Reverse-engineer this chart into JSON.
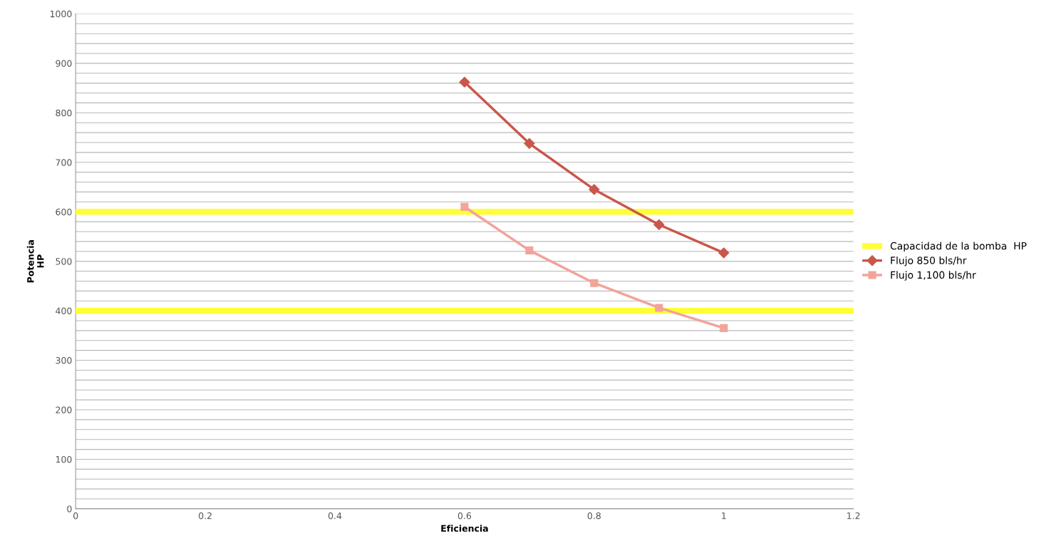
{
  "chart_data": {
    "type": "line",
    "xlabel": "Eficiencia",
    "ylabel": "Potencia\nHP",
    "series": [
      {
        "name": "Capacidad de la bomba  HP",
        "color": "#ffff33",
        "x": [
          0,
          1.2
        ],
        "values": [
          600,
          600
        ],
        "marker": "none"
      },
      {
        "color": "#ffff33",
        "x": [
          0,
          1.2
        ],
        "values": [
          400,
          400
        ],
        "marker": "none"
      },
      {
        "name": "Flujo 850 bls/hr",
        "color": "#c9574b",
        "x": [
          0.6,
          0.7,
          0.8,
          0.9,
          1
        ],
        "values": [
          862,
          738,
          645,
          574,
          517
        ],
        "marker": "diamond"
      },
      {
        "name": "Flujo 1,100 bls/hr",
        "color": "#f2a39a",
        "x": [
          0.6,
          0.7,
          0.8,
          0.9,
          1
        ],
        "values": [
          610,
          522,
          456,
          406,
          365
        ],
        "marker": "square"
      }
    ],
    "xlim": [
      0,
      1.2
    ],
    "xticks": [
      0,
      0.2,
      0.4,
      0.6,
      0.8,
      1,
      1.2
    ],
    "ylim": [
      0,
      1000
    ],
    "yticks": [
      0,
      {
        "value": 20,
        "label": null
      },
      {
        "value": 40,
        "label": null
      },
      {
        "value": 60,
        "label": null
      },
      {
        "value": 80,
        "label": null
      },
      100,
      {
        "value": 120,
        "label": null
      },
      {
        "value": 140,
        "label": null
      },
      {
        "value": 160,
        "label": null
      },
      {
        "value": 180,
        "label": null
      },
      200,
      {
        "value": 220,
        "label": null
      },
      {
        "value": 240,
        "label": null
      },
      {
        "value": 260,
        "label": null
      },
      {
        "value": 280,
        "label": null
      },
      300,
      {
        "value": 320,
        "label": null
      },
      {
        "value": 340,
        "label": null
      },
      {
        "value": 360,
        "label": null
      },
      {
        "value": 380,
        "label": null
      },
      400,
      {
        "value": 420,
        "label": null
      },
      {
        "value": 440,
        "label": null
      },
      {
        "value": 460,
        "label": null
      },
      {
        "value": 480,
        "label": null
      },
      500,
      {
        "value": 520,
        "label": null
      },
      {
        "value": 540,
        "label": null
      },
      {
        "value": 560,
        "label": null
      },
      {
        "value": 580,
        "label": null
      },
      600,
      {
        "value": 620,
        "label": null
      },
      {
        "value": 640,
        "label": null
      },
      {
        "value": 660,
        "label": null
      },
      {
        "value": 680,
        "label": null
      },
      700,
      {
        "value": 720,
        "label": null
      },
      {
        "value": 740,
        "label": null
      },
      {
        "value": 760,
        "label": null
      },
      {
        "value": 780,
        "label": null
      },
      800,
      {
        "value": 820,
        "label": null
      },
      {
        "value": 840,
        "label": null
      },
      {
        "value": 860,
        "label": null
      },
      {
        "value": 880,
        "label": null
      },
      900,
      {
        "value": 920,
        "label": null
      },
      {
        "value": 940,
        "label": null
      },
      {
        "value": 960,
        "label": null
      },
      {
        "value": 980,
        "label": null
      },
      1000
    ],
    "grid": "y",
    "legend": "right",
    "line_style": "solid"
  }
}
